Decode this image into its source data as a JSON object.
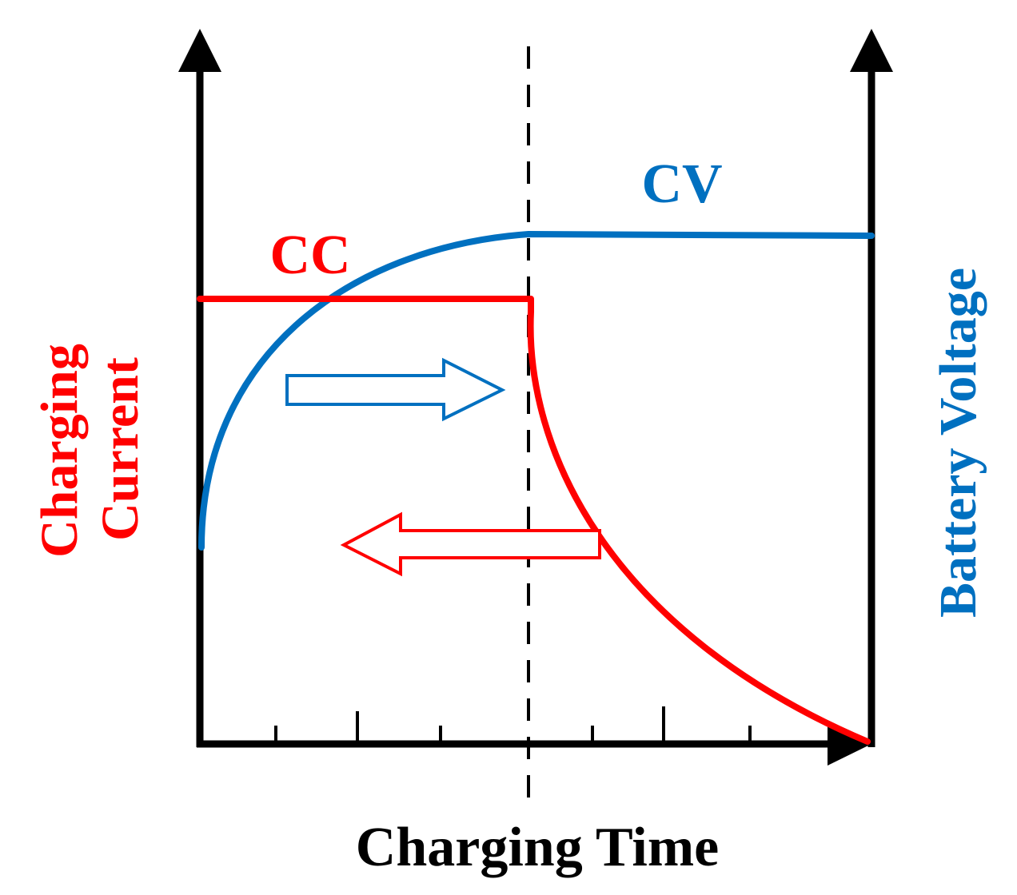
{
  "labels": {
    "x_axis": "Charging Time",
    "left_axis_line1": "Charging",
    "left_axis_line2": "Current",
    "right_axis": "Battery Voltage",
    "cc": "CC",
    "cv": "CV"
  },
  "colors": {
    "current": "#ff0000",
    "voltage": "#0070c0",
    "axis": "#000000"
  },
  "icons": {
    "right_arrow": "voltage-direction-arrow-icon",
    "left_arrow": "current-direction-arrow-icon"
  }
}
